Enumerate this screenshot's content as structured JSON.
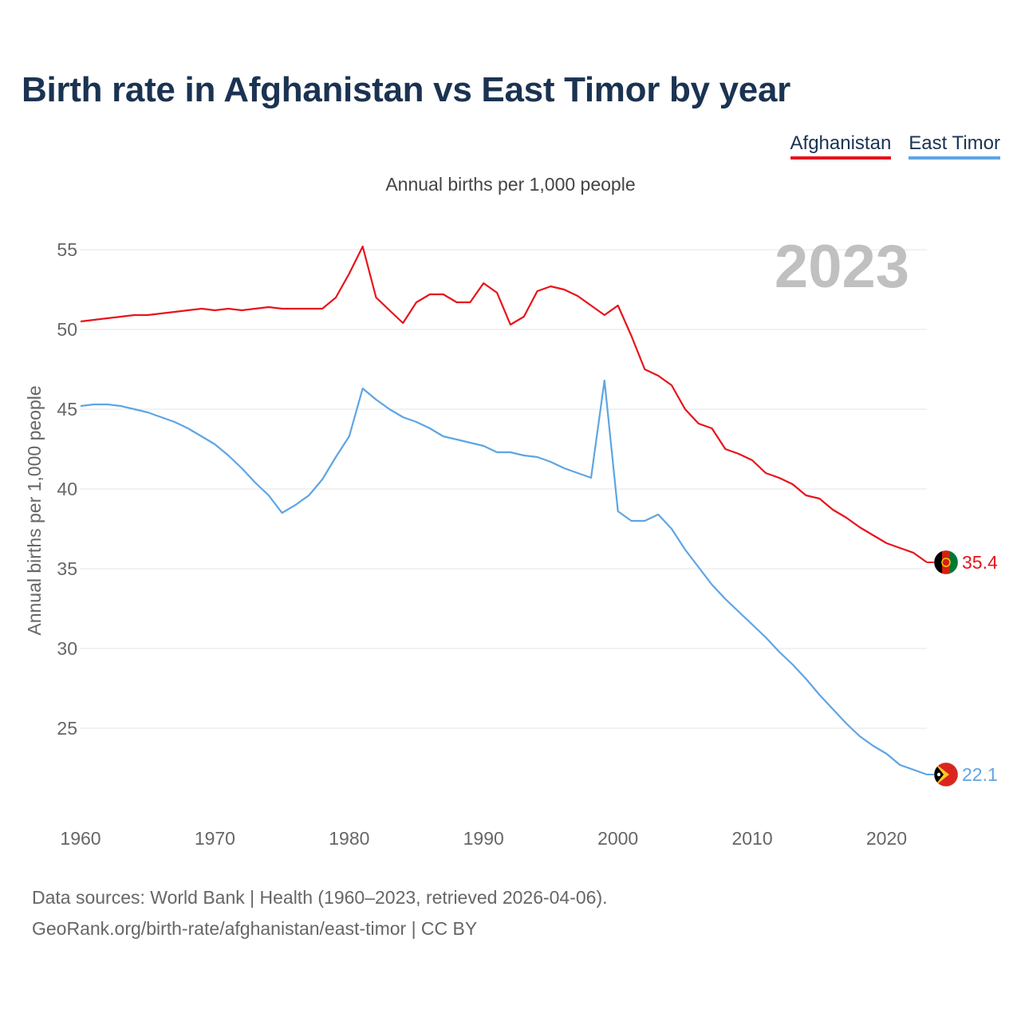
{
  "title": "Birth rate in Afghanistan vs East Timor by year",
  "chart_data": {
    "type": "line",
    "title": "Birth rate in Afghanistan vs East Timor by year",
    "subtitle": "Annual births per 1,000 people",
    "ylabel": "Annual births per 1,000 people",
    "xlabel": "",
    "ylim": [
      20,
      57
    ],
    "xlim": [
      1960,
      2023
    ],
    "yticks": [
      25,
      30,
      35,
      40,
      45,
      50,
      55
    ],
    "xticks": [
      1960,
      1970,
      1980,
      1990,
      2000,
      2010,
      2020
    ],
    "year_label": "2023",
    "grid": true,
    "legend_position": "top-right",
    "x": [
      1960,
      1961,
      1962,
      1963,
      1964,
      1965,
      1966,
      1967,
      1968,
      1969,
      1970,
      1971,
      1972,
      1973,
      1974,
      1975,
      1976,
      1977,
      1978,
      1979,
      1980,
      1981,
      1982,
      1983,
      1984,
      1985,
      1986,
      1987,
      1988,
      1989,
      1990,
      1991,
      1992,
      1993,
      1994,
      1995,
      1996,
      1997,
      1998,
      1999,
      2000,
      2001,
      2002,
      2003,
      2004,
      2005,
      2006,
      2007,
      2008,
      2009,
      2010,
      2011,
      2012,
      2013,
      2014,
      2015,
      2016,
      2017,
      2018,
      2019,
      2020,
      2021,
      2022,
      2023
    ],
    "series": [
      {
        "name": "Afghanistan",
        "color": "#e8131b",
        "end_label": "35.4",
        "flag": "afghanistan-flag-icon",
        "values": [
          50.5,
          50.6,
          50.7,
          50.8,
          50.9,
          50.9,
          51.0,
          51.1,
          51.2,
          51.3,
          51.2,
          51.3,
          51.2,
          51.3,
          51.4,
          51.3,
          51.3,
          51.3,
          51.3,
          52.0,
          53.5,
          55.2,
          52.0,
          51.2,
          50.4,
          51.7,
          52.2,
          52.2,
          51.7,
          51.7,
          52.9,
          52.3,
          50.3,
          50.8,
          52.4,
          52.7,
          52.5,
          52.1,
          51.5,
          50.9,
          51.5,
          49.6,
          47.5,
          47.1,
          46.5,
          45.0,
          44.1,
          43.8,
          42.5,
          42.2,
          41.8,
          41.0,
          40.7,
          40.3,
          39.6,
          39.4,
          38.7,
          38.2,
          37.6,
          37.1,
          36.6,
          36.3,
          36.0,
          35.4
        ]
      },
      {
        "name": "East Timor",
        "color": "#5ea5e4",
        "end_label": "22.1",
        "flag": "east-timor-flag-icon",
        "values": [
          45.2,
          45.3,
          45.3,
          45.2,
          45.0,
          44.8,
          44.5,
          44.2,
          43.8,
          43.3,
          42.8,
          42.1,
          41.3,
          40.4,
          39.6,
          38.5,
          39.0,
          39.6,
          40.6,
          42.0,
          43.3,
          46.3,
          45.6,
          45.0,
          44.5,
          44.2,
          43.8,
          43.3,
          43.1,
          42.9,
          42.7,
          42.3,
          42.3,
          42.1,
          42.0,
          41.7,
          41.3,
          41.0,
          40.7,
          46.8,
          38.6,
          38.0,
          38.0,
          38.4,
          37.5,
          36.2,
          35.1,
          34.0,
          33.1,
          32.3,
          31.5,
          30.7,
          29.8,
          29.0,
          28.1,
          27.1,
          26.2,
          25.3,
          24.5,
          23.9,
          23.4,
          22.7,
          22.4,
          22.1
        ]
      }
    ]
  },
  "footer": {
    "line1": "Data sources: World Bank | Health (1960–2023, retrieved 2026-04-06).",
    "line2": "GeoRank.org/birth-rate/afghanistan/east-timor | CC BY"
  }
}
